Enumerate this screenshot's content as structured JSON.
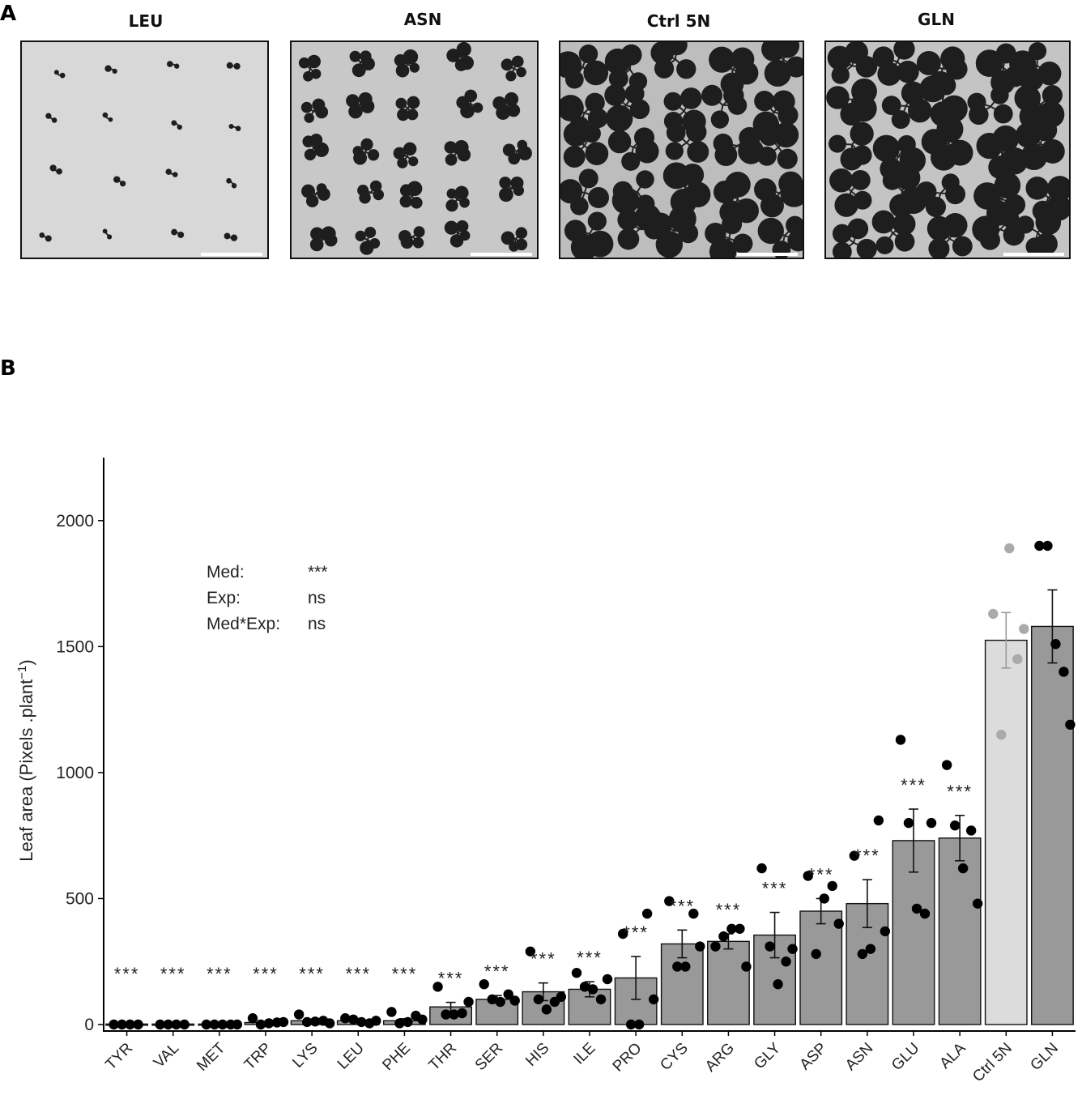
{
  "panel_a": {
    "letter": "A",
    "photos": [
      {
        "label": "LEU",
        "density": "sparse",
        "bg": "#d8d8d8"
      },
      {
        "label": "ASN",
        "density": "medium",
        "bg": "#c8c8c8"
      },
      {
        "label": "Ctrl 5N",
        "density": "dense",
        "bg": "#bdbdbd"
      },
      {
        "label": "GLN",
        "density": "dense",
        "bg": "#c4c4c4"
      }
    ]
  },
  "panel_b": {
    "letter": "B"
  },
  "chart_data": {
    "type": "bar",
    "ylabel": "Leaf area (Pixels .plant",
    "ylabel_sup": "−1",
    "ylabel_close": ")",
    "ylim": [
      0,
      2250
    ],
    "yticks": [
      0,
      500,
      1000,
      1500,
      2000
    ],
    "grid": false,
    "stats": [
      {
        "label": "Med:",
        "value": "***"
      },
      {
        "label": "Exp:",
        "value": "ns"
      },
      {
        "label": "Med*Exp:",
        "value": "ns"
      }
    ],
    "categories": [
      "TYR",
      "VAL",
      "MET",
      "TRP",
      "LYS",
      "LEU",
      "PHE",
      "THR",
      "SER",
      "HIS",
      "ILE",
      "PRO",
      "CYS",
      "ARG",
      "GLY",
      "ASP",
      "ASN",
      "GLU",
      "ALA",
      "Ctrl 5N",
      "GLN"
    ],
    "values": [
      2,
      2,
      2,
      8,
      15,
      15,
      15,
      70,
      100,
      130,
      140,
      185,
      320,
      330,
      355,
      450,
      480,
      730,
      740,
      1525,
      1580
    ],
    "errors": [
      1,
      1,
      1,
      4,
      6,
      6,
      8,
      18,
      15,
      35,
      30,
      85,
      55,
      30,
      90,
      50,
      95,
      125,
      90,
      110,
      145
    ],
    "significance": [
      "***",
      "***",
      "***",
      "***",
      "***",
      "***",
      "***",
      "***",
      "***",
      "***",
      "***",
      "***",
      "***",
      "***",
      "***",
      "***",
      "***",
      "***",
      "***",
      "",
      ""
    ],
    "points": [
      [
        0,
        0,
        0,
        0
      ],
      [
        0,
        0,
        0,
        0
      ],
      [
        0,
        0,
        0,
        0,
        0
      ],
      [
        25,
        0,
        5,
        8,
        10
      ],
      [
        40,
        10,
        12,
        15,
        5
      ],
      [
        25,
        20,
        10,
        5,
        15
      ],
      [
        50,
        5,
        10,
        35,
        20
      ],
      [
        150,
        40,
        40,
        45,
        90
      ],
      [
        160,
        100,
        90,
        120,
        95
      ],
      [
        290,
        100,
        60,
        90,
        110
      ],
      [
        205,
        150,
        140,
        100,
        180
      ],
      [
        360,
        0,
        0,
        440,
        100
      ],
      [
        490,
        230,
        230,
        440,
        310
      ],
      [
        310,
        350,
        380,
        380,
        230
      ],
      [
        620,
        310,
        160,
        250,
        300
      ],
      [
        590,
        280,
        500,
        550,
        400
      ],
      [
        670,
        280,
        300,
        810,
        370
      ],
      [
        1130,
        800,
        460,
        440,
        800
      ],
      [
        1030,
        790,
        620,
        770,
        480
      ],
      [
        1630,
        1150,
        1890,
        1450,
        1570
      ],
      [
        1900,
        1900,
        1510,
        1400,
        1190
      ]
    ],
    "bar_colors": {
      "default": "#999999",
      "control": "#dcdcdc",
      "point": "#000000",
      "control_point": "#aaaaaa"
    },
    "control_index": 19
  }
}
